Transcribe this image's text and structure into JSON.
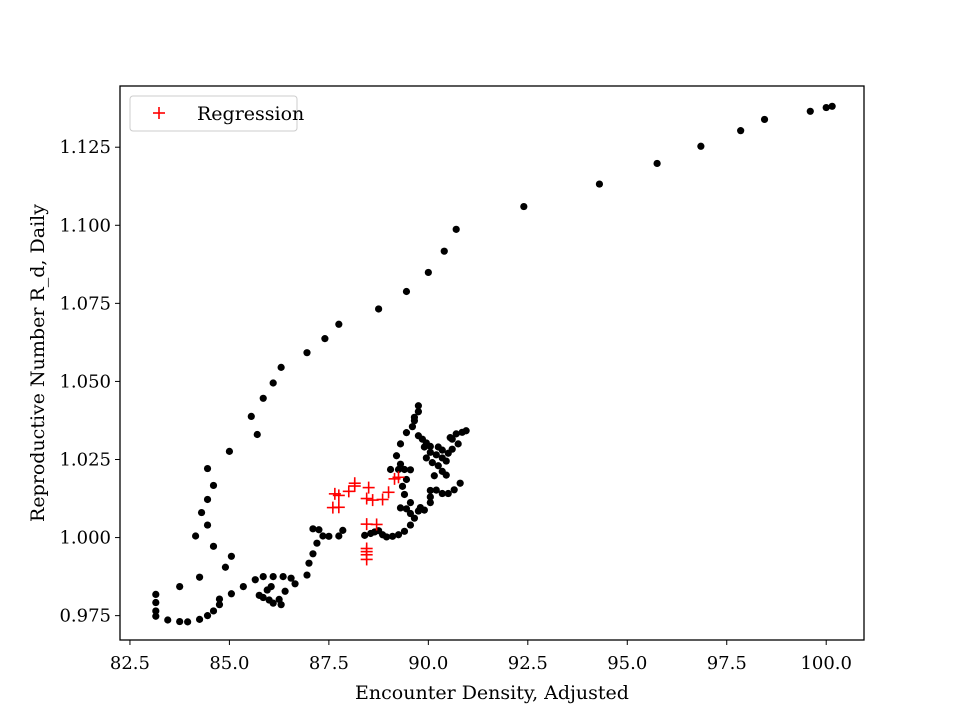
{
  "chart_data": {
    "type": "scatter",
    "title": "",
    "xlabel": "Encounter Density, Adjusted",
    "ylabel": "Reproductive Number R_d, Daily",
    "xlim": [
      82.25,
      100.95
    ],
    "ylim": [
      0.9672,
      1.1446
    ],
    "xticks": [
      "82.5",
      "85.0",
      "87.5",
      "90.0",
      "92.5",
      "95.0",
      "97.5",
      "100.0"
    ],
    "yticks": [
      "0.975",
      "1.000",
      "1.025",
      "1.050",
      "1.075",
      "1.100",
      "1.125"
    ],
    "grid": false,
    "legend": {
      "placement": "top-left",
      "entries": [
        "Regression"
      ]
    },
    "colors": {
      "observed": "#000000",
      "regression": "#ff0000",
      "axes": "#000000",
      "legend_border": "#cccccc"
    },
    "series": [
      {
        "marker": "dot",
        "points": [
          [
            100.15,
            1.1381
          ],
          [
            100.0,
            1.1377
          ],
          [
            99.6,
            1.1365
          ],
          [
            98.45,
            1.1339
          ],
          [
            97.85,
            1.1303
          ],
          [
            96.85,
            1.1253
          ],
          [
            95.75,
            1.1198
          ],
          [
            94.3,
            1.1132
          ],
          [
            92.4,
            1.106
          ],
          [
            90.7,
            1.0987
          ],
          [
            90.4,
            1.0917
          ],
          [
            90.0,
            1.0849
          ],
          [
            89.45,
            1.0788
          ],
          [
            88.75,
            1.0732
          ],
          [
            87.75,
            1.0683
          ],
          [
            87.4,
            1.0637
          ],
          [
            86.95,
            1.0592
          ],
          [
            86.3,
            1.0545
          ],
          [
            86.1,
            1.0495
          ],
          [
            85.85,
            1.0446
          ],
          [
            85.55,
            1.0388
          ],
          [
            85.7,
            1.033
          ],
          [
            85.0,
            1.0276
          ],
          [
            84.45,
            1.0221
          ],
          [
            84.6,
            1.0167
          ],
          [
            84.45,
            1.0122
          ],
          [
            84.3,
            1.008
          ],
          [
            84.45,
            1.004
          ],
          [
            84.15,
            1.0005
          ],
          [
            84.6,
            0.9972
          ],
          [
            85.05,
            0.994
          ],
          [
            84.9,
            0.9905
          ],
          [
            84.25,
            0.9873
          ],
          [
            83.75,
            0.9843
          ],
          [
            84.75,
            0.9803
          ],
          [
            84.75,
            0.9785
          ],
          [
            84.6,
            0.9765
          ],
          [
            84.45,
            0.975
          ],
          [
            84.25,
            0.9738
          ],
          [
            83.95,
            0.973
          ],
          [
            83.75,
            0.9731
          ],
          [
            83.45,
            0.9736
          ],
          [
            83.15,
            0.9748
          ],
          [
            83.15,
            0.9765
          ],
          [
            83.15,
            0.9792
          ],
          [
            83.15,
            0.9818
          ],
          [
            85.05,
            0.982
          ],
          [
            85.35,
            0.9843
          ],
          [
            85.65,
            0.9865
          ],
          [
            85.85,
            0.9875
          ],
          [
            86.1,
            0.9875
          ],
          [
            86.35,
            0.9875
          ],
          [
            86.55,
            0.987
          ],
          [
            86.65,
            0.9852
          ],
          [
            86.4,
            0.9828
          ],
          [
            86.25,
            0.9802
          ],
          [
            86.3,
            0.9785
          ],
          [
            86.1,
            0.979
          ],
          [
            86.0,
            0.98
          ],
          [
            85.85,
            0.9808
          ],
          [
            85.75,
            0.9815
          ],
          [
            86.05,
            0.9843
          ],
          [
            85.95,
            0.9832
          ],
          [
            86.95,
            0.988
          ],
          [
            87.0,
            0.9918
          ],
          [
            87.1,
            0.9948
          ],
          [
            87.2,
            0.9982
          ],
          [
            87.35,
            1.0005
          ],
          [
            87.5,
            1.0004
          ],
          [
            87.75,
            1.0005
          ],
          [
            87.85,
            1.0023
          ],
          [
            87.25,
            1.0025
          ],
          [
            87.1,
            1.0028
          ],
          [
            88.4,
            1.0007
          ],
          [
            88.55,
            1.0013
          ],
          [
            88.65,
            1.0018
          ],
          [
            88.75,
            1.0022
          ],
          [
            88.85,
            1.0009
          ],
          [
            88.95,
            1.0002
          ],
          [
            89.1,
            1.0004
          ],
          [
            89.25,
            1.0009
          ],
          [
            89.4,
            1.002
          ],
          [
            89.55,
            1.004
          ],
          [
            89.65,
            1.0062
          ],
          [
            89.75,
            1.0085
          ],
          [
            89.45,
            1.0092
          ],
          [
            89.3,
            1.0095
          ],
          [
            89.55,
            1.0077
          ],
          [
            90.05,
            1.0112
          ],
          [
            90.05,
            1.013
          ],
          [
            90.05,
            1.0151
          ],
          [
            90.2,
            1.0152
          ],
          [
            90.35,
            1.0141
          ],
          [
            90.5,
            1.0141
          ],
          [
            90.65,
            1.0153
          ],
          [
            90.8,
            1.0174
          ],
          [
            90.45,
            1.0245
          ],
          [
            90.35,
            1.0255
          ],
          [
            90.2,
            1.0265
          ],
          [
            90.05,
            1.0273
          ],
          [
            89.9,
            1.029
          ],
          [
            89.85,
            1.0315
          ],
          [
            89.75,
            1.0326
          ],
          [
            89.6,
            1.0355
          ],
          [
            89.65,
            1.0374
          ],
          [
            89.75,
            1.0403
          ],
          [
            89.75,
            1.0422
          ],
          [
            89.65,
            1.0385
          ],
          [
            89.45,
            1.0336
          ],
          [
            89.3,
            1.03
          ],
          [
            89.2,
            1.0262
          ],
          [
            89.3,
            1.0235
          ],
          [
            89.4,
            1.0218
          ],
          [
            89.55,
            1.0217
          ],
          [
            89.25,
            1.0218
          ],
          [
            89.05,
            1.0218
          ],
          [
            89.45,
            1.0186
          ],
          [
            89.35,
            1.0164
          ],
          [
            89.4,
            1.0138
          ],
          [
            89.55,
            1.0112
          ],
          [
            89.8,
            1.0096
          ],
          [
            89.9,
            1.0088
          ],
          [
            89.95,
            1.0303
          ],
          [
            90.05,
            1.0292
          ],
          [
            90.25,
            1.029
          ],
          [
            90.35,
            1.028
          ],
          [
            90.5,
            1.027
          ],
          [
            90.6,
            1.0283
          ],
          [
            90.75,
            1.03
          ],
          [
            90.6,
            1.0315
          ],
          [
            90.55,
            1.032
          ],
          [
            90.7,
            1.0332
          ],
          [
            90.85,
            1.0337
          ],
          [
            90.95,
            1.0342
          ],
          [
            89.95,
            1.0255
          ],
          [
            90.1,
            1.024
          ],
          [
            90.25,
            1.023
          ],
          [
            90.35,
            1.0212
          ],
          [
            90.45,
            1.02
          ],
          [
            90.15,
            1.0198
          ]
        ]
      },
      {
        "name": "Regression",
        "marker": "plus",
        "points": [
          [
            87.65,
            1.014
          ],
          [
            87.75,
            1.0135
          ],
          [
            87.75,
            1.0097
          ],
          [
            87.6,
            1.0096
          ],
          [
            88.0,
            1.0148
          ],
          [
            88.15,
            1.0165
          ],
          [
            88.15,
            1.0174
          ],
          [
            88.5,
            1.016
          ],
          [
            88.45,
            1.0125
          ],
          [
            88.6,
            1.012
          ],
          [
            88.85,
            1.0122
          ],
          [
            89.0,
            1.0145
          ],
          [
            89.15,
            1.0188
          ],
          [
            89.25,
            1.0193
          ],
          [
            88.45,
            1.0043
          ],
          [
            88.7,
            1.0042
          ],
          [
            88.45,
            0.9965
          ],
          [
            88.45,
            0.9955
          ],
          [
            88.45,
            0.9945
          ],
          [
            88.45,
            0.993
          ]
        ]
      }
    ]
  }
}
